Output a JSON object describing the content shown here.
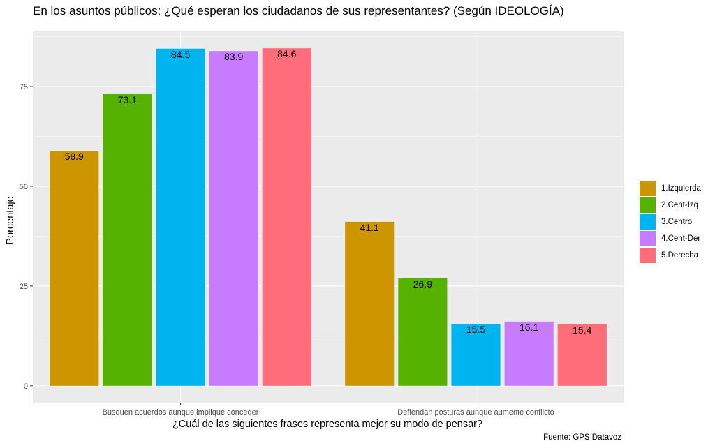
{
  "title": "En los asuntos públicos: ¿Qué esperan los ciudadanos de sus representantes? (Según IDEOLOGÍA)",
  "caption": "Fuente: GPS Datavoz",
  "colors": {
    "panel_bg": "#EBEBEB",
    "grid_major": "#FFFFFF",
    "grid_minor": "#F5F5F5",
    "tick_text": "#4D4D4D"
  },
  "chart_data": {
    "type": "bar",
    "xlabel": "¿Cuál de las siguientes frases representa mejor su modo de pensar?",
    "ylabel": "Porcentaje",
    "categories": [
      "Busquen acuerdos aunque implique conceder",
      "Defiendan posturas aunque aumente conflicto"
    ],
    "series": [
      {
        "name": "1.Izquierda",
        "color": "#CD9600",
        "values": [
          58.9,
          41.1
        ]
      },
      {
        "name": "2.Cent-Izq",
        "color": "#55B300",
        "values": [
          73.1,
          26.9
        ]
      },
      {
        "name": "3.Centro",
        "color": "#00B4F0",
        "values": [
          84.5,
          15.5
        ]
      },
      {
        "name": "4.Cent-Der",
        "color": "#C77CFF",
        "values": [
          83.9,
          16.1
        ]
      },
      {
        "name": "5.Derecha",
        "color": "#FF6C7A",
        "values": [
          84.6,
          15.4
        ]
      }
    ],
    "yticks": [
      0,
      25,
      50,
      75
    ],
    "ylim": [
      -4.23,
      88.83
    ],
    "grid": true,
    "legend": "right"
  }
}
